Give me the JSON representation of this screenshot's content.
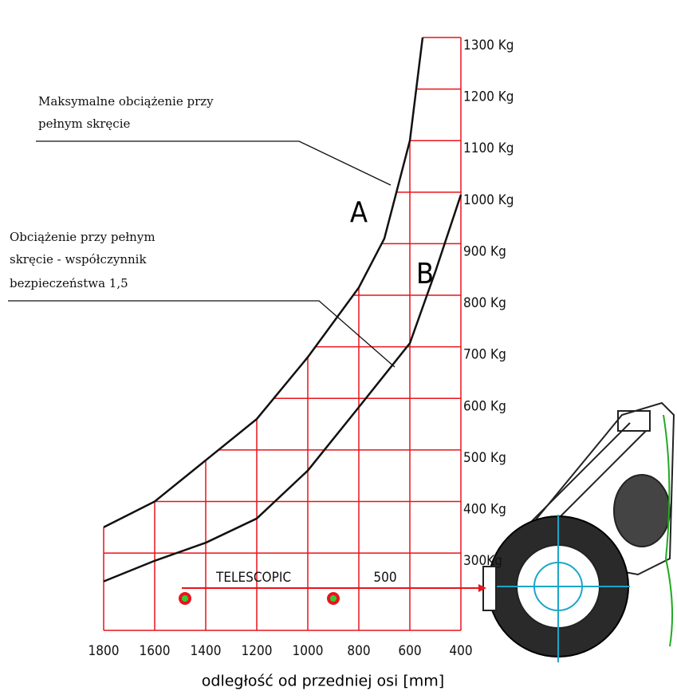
{
  "chart_data": {
    "type": "line",
    "xlabel": "odległość od przedniej osi [mm]",
    "xlim": [
      1800,
      400
    ],
    "ylim": [
      150,
      1300
    ],
    "xticks": [
      1800,
      1600,
      1400,
      1200,
      1000,
      800,
      600,
      400
    ],
    "yticks": [
      {
        "value": 1300,
        "label": "1300 Kg"
      },
      {
        "value": 1200,
        "label": "1200 Kg"
      },
      {
        "value": 1100,
        "label": "1100 Kg"
      },
      {
        "value": 1000,
        "label": "1000 Kg"
      },
      {
        "value": 900,
        "label": "900 Kg"
      },
      {
        "value": 800,
        "label": "800 Kg"
      },
      {
        "value": 700,
        "label": "700 Kg"
      },
      {
        "value": 600,
        "label": "600 Kg"
      },
      {
        "value": 500,
        "label": "500 Kg"
      },
      {
        "value": 400,
        "label": "400 Kg"
      },
      {
        "value": 300,
        "label": "300Kg"
      }
    ],
    "grid": true,
    "grid_color": "#e8141c",
    "series": [
      {
        "name": "A",
        "color": "#111111",
        "x": [
          1800,
          1600,
          1400,
          1200,
          1000,
          800,
          700,
          600,
          550
        ],
        "values": [
          350,
          400,
          480,
          560,
          680,
          815,
          910,
          1100,
          1300
        ]
      },
      {
        "name": "B",
        "color": "#111111",
        "x": [
          1800,
          1600,
          1400,
          1200,
          1000,
          800,
          600,
          500,
          400
        ],
        "values": [
          245,
          285,
          320,
          367,
          460,
          583,
          707,
          846,
          995
        ]
      }
    ],
    "annotations": [
      {
        "lines": [
          "Maksymalne obciążenie przy",
          "pełnym skręcie"
        ]
      },
      {
        "lines": [
          "Obciążenie przy pełnym",
          "skręcie - współczynnik",
          "bezpieczeństwa 1,5"
        ]
      }
    ],
    "telescopic_label": "TELESCOPIC",
    "telescopic_value": "500"
  }
}
